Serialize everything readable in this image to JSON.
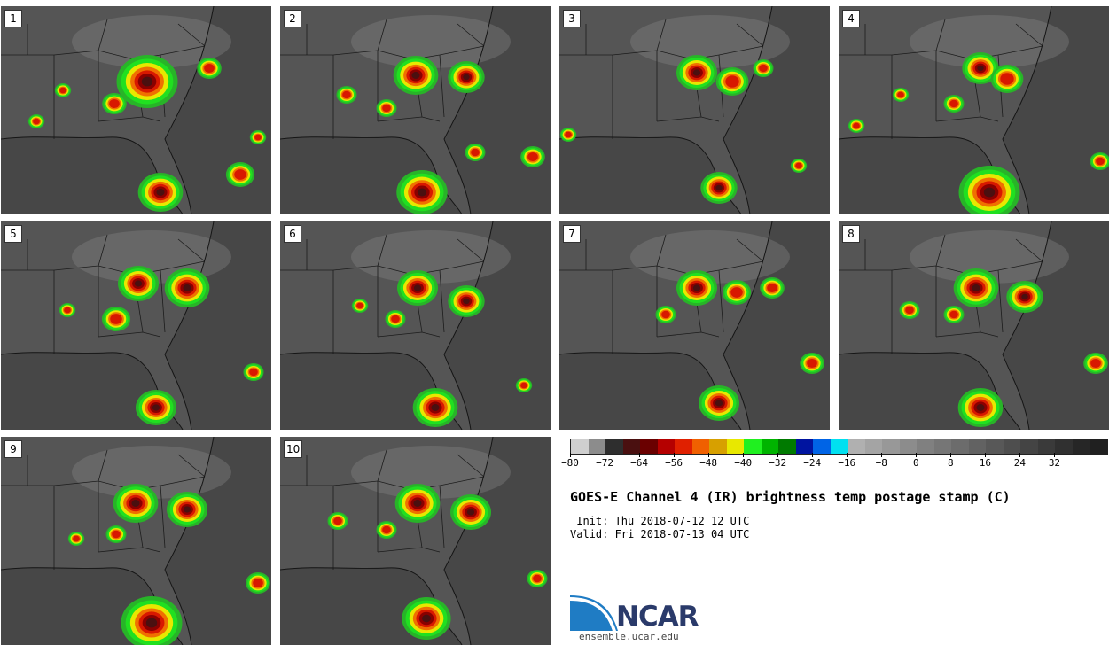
{
  "panels": [
    {
      "label": "1"
    },
    {
      "label": "2"
    },
    {
      "label": "3"
    },
    {
      "label": "4"
    },
    {
      "label": "5"
    },
    {
      "label": "6"
    },
    {
      "label": "7"
    },
    {
      "label": "8"
    },
    {
      "label": "9"
    },
    {
      "label": "10"
    }
  ],
  "colorbar": {
    "colors": [
      "#cfcfcf",
      "#8c8c8c",
      "#2e2e2e",
      "#4a1010",
      "#6a0000",
      "#b50000",
      "#e02000",
      "#f06000",
      "#d7a000",
      "#e8e800",
      "#20f020",
      "#00b400",
      "#007a00",
      "#0014a0",
      "#0064e6",
      "#00e0f0",
      "#b0b0b0",
      "#a4a4a4",
      "#989898",
      "#8c8c8c",
      "#808080",
      "#767676",
      "#6c6c6c",
      "#626262",
      "#585858",
      "#4e4e4e",
      "#444444",
      "#3a3a3a",
      "#303030",
      "#262626",
      "#202020"
    ],
    "tick_labels": [
      "−80",
      "−72",
      "−64",
      "−56",
      "−48",
      "−40",
      "−32",
      "−24",
      "−16",
      "−8",
      "0",
      "8",
      "16",
      "24",
      "32"
    ],
    "tick_values": [
      -80,
      -72,
      -64,
      -56,
      -48,
      -40,
      -32,
      -24,
      -16,
      -8,
      0,
      8,
      16,
      24,
      32
    ],
    "range": [
      -80,
      44
    ]
  },
  "title": "GOES-E Channel 4 (IR) brightness temp postage stamp (C)",
  "init": " Init: Thu 2018-07-12 12 UTC",
  "valid": "Valid: Fri 2018-07-13 04 UTC",
  "logo_text": "NCAR",
  "url": "ensemble.ucar.edu"
}
